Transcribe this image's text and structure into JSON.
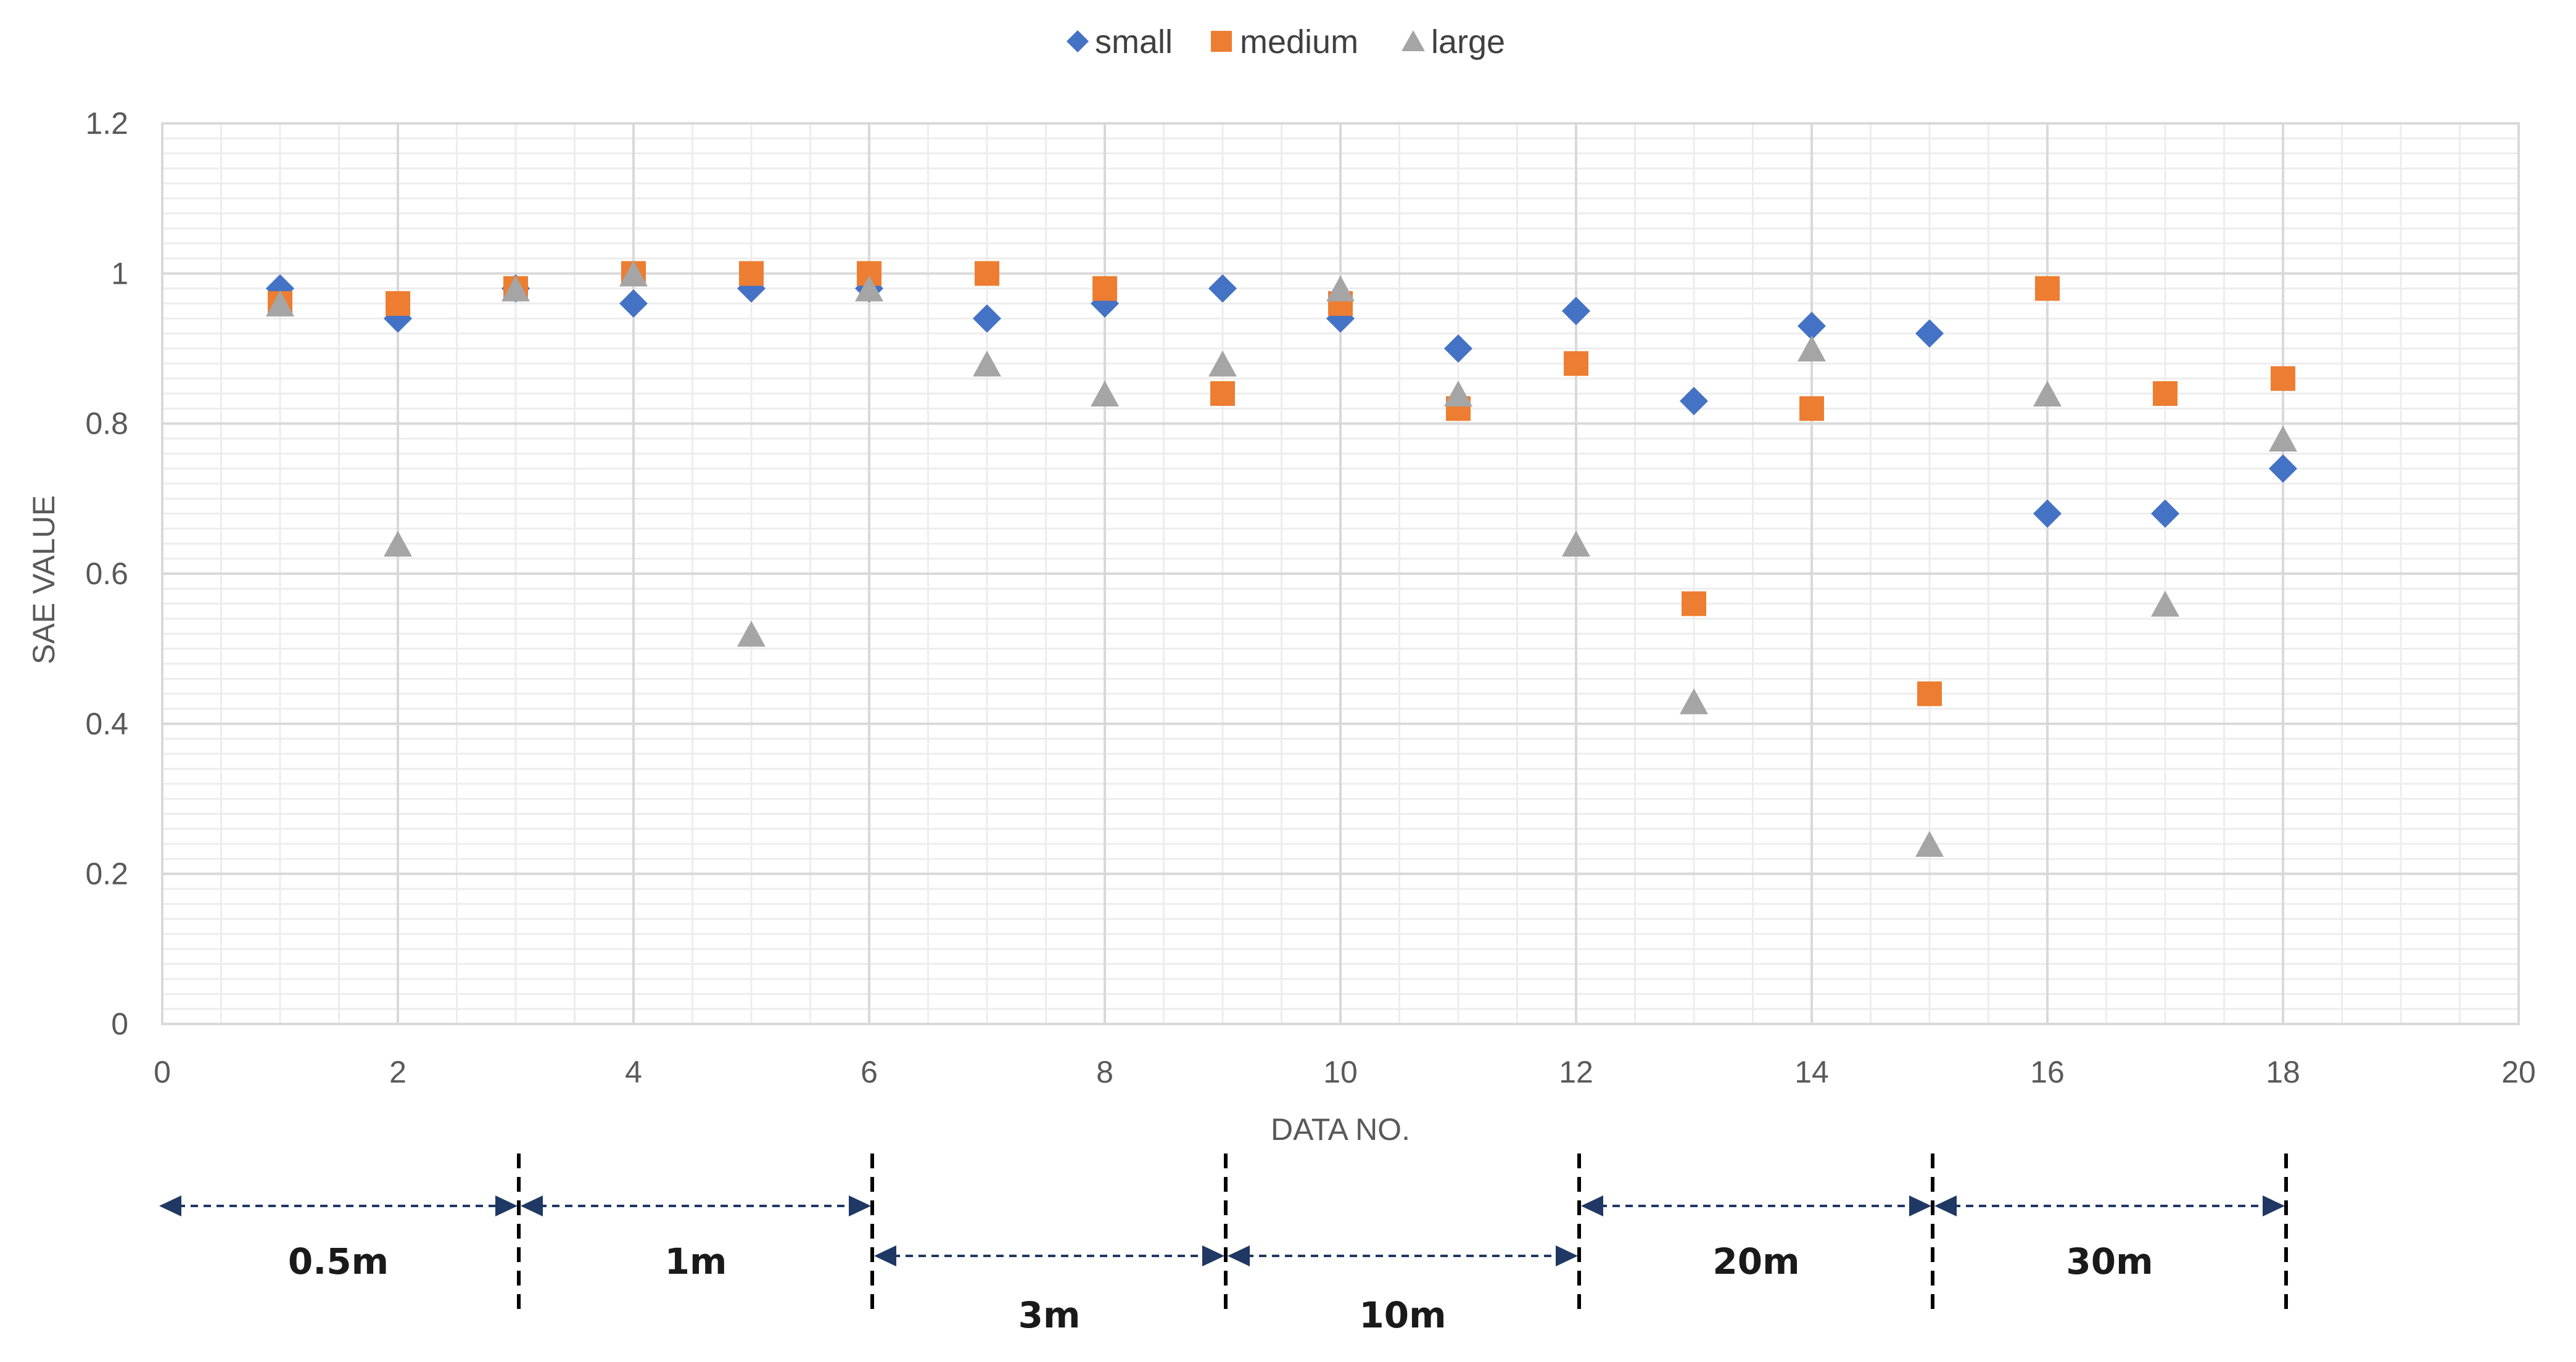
{
  "chart_data": {
    "type": "scatter",
    "title": "",
    "xlabel": "DATA NO.",
    "ylabel": "SAE  VALUE",
    "xlim": [
      0,
      20
    ],
    "ylim": [
      0,
      1.2
    ],
    "x_ticks": [
      0,
      2,
      4,
      6,
      8,
      10,
      12,
      14,
      16,
      18,
      20
    ],
    "y_ticks": [
      0,
      0.2,
      0.4,
      0.6,
      0.8,
      1,
      1.2
    ],
    "x_tick_labels": [
      "0",
      "2",
      "4",
      "6",
      "8",
      "10",
      "12",
      "14",
      "16",
      "18",
      "20"
    ],
    "y_tick_labels": [
      "0",
      "0.2",
      "0.4",
      "0.6",
      "0.8",
      "1",
      "1.2"
    ],
    "grid": true,
    "legend_position": "top-center",
    "series": [
      {
        "name": "small",
        "marker": "diamond",
        "color": "#4472C4",
        "x": [
          1,
          2,
          3,
          4,
          5,
          6,
          7,
          8,
          9,
          10,
          11,
          12,
          13,
          14,
          15,
          16,
          17,
          18
        ],
        "y": [
          0.98,
          0.94,
          0.98,
          0.96,
          0.98,
          0.98,
          0.94,
          0.96,
          0.98,
          0.94,
          0.9,
          0.95,
          0.83,
          0.93,
          0.92,
          0.68,
          0.68,
          0.74
        ]
      },
      {
        "name": "medium",
        "marker": "square",
        "color": "#ED7D31",
        "x": [
          1,
          2,
          3,
          4,
          5,
          6,
          7,
          8,
          9,
          10,
          11,
          12,
          13,
          14,
          15,
          16,
          17,
          18
        ],
        "y": [
          0.96,
          0.96,
          0.98,
          1.0,
          1.0,
          1.0,
          1.0,
          0.98,
          0.84,
          0.96,
          0.82,
          0.88,
          0.56,
          0.82,
          0.44,
          0.98,
          0.84,
          0.86
        ]
      },
      {
        "name": "large",
        "marker": "triangle",
        "color": "#A5A5A5",
        "x": [
          1,
          2,
          3,
          4,
          5,
          6,
          7,
          8,
          9,
          10,
          11,
          12,
          13,
          14,
          15,
          16,
          17,
          18
        ],
        "y": [
          0.96,
          0.64,
          0.98,
          1.0,
          0.52,
          0.98,
          0.88,
          0.84,
          0.88,
          0.98,
          0.84,
          0.64,
          0.43,
          0.9,
          0.24,
          0.84,
          0.56,
          0.78
        ]
      }
    ],
    "distance_ranges": [
      {
        "label": "0.5m",
        "from": 0,
        "to": 3.0,
        "row": 0
      },
      {
        "label": "1m",
        "from": 3.0,
        "to": 6.0,
        "row": 0
      },
      {
        "label": "3m",
        "from": 6.0,
        "to": 9.0,
        "row": 1
      },
      {
        "label": "10m",
        "from": 9.0,
        "to": 12.0,
        "row": 1
      },
      {
        "label": "20m",
        "from": 12.0,
        "to": 15.0,
        "row": 0
      },
      {
        "label": "30m",
        "from": 15.0,
        "to": 18.0,
        "row": 0
      }
    ],
    "colors": {
      "grid_major": "#D9D9D9",
      "grid_minor": "#EDEDED",
      "text": "#595959",
      "arrow": "#1F3864"
    }
  }
}
